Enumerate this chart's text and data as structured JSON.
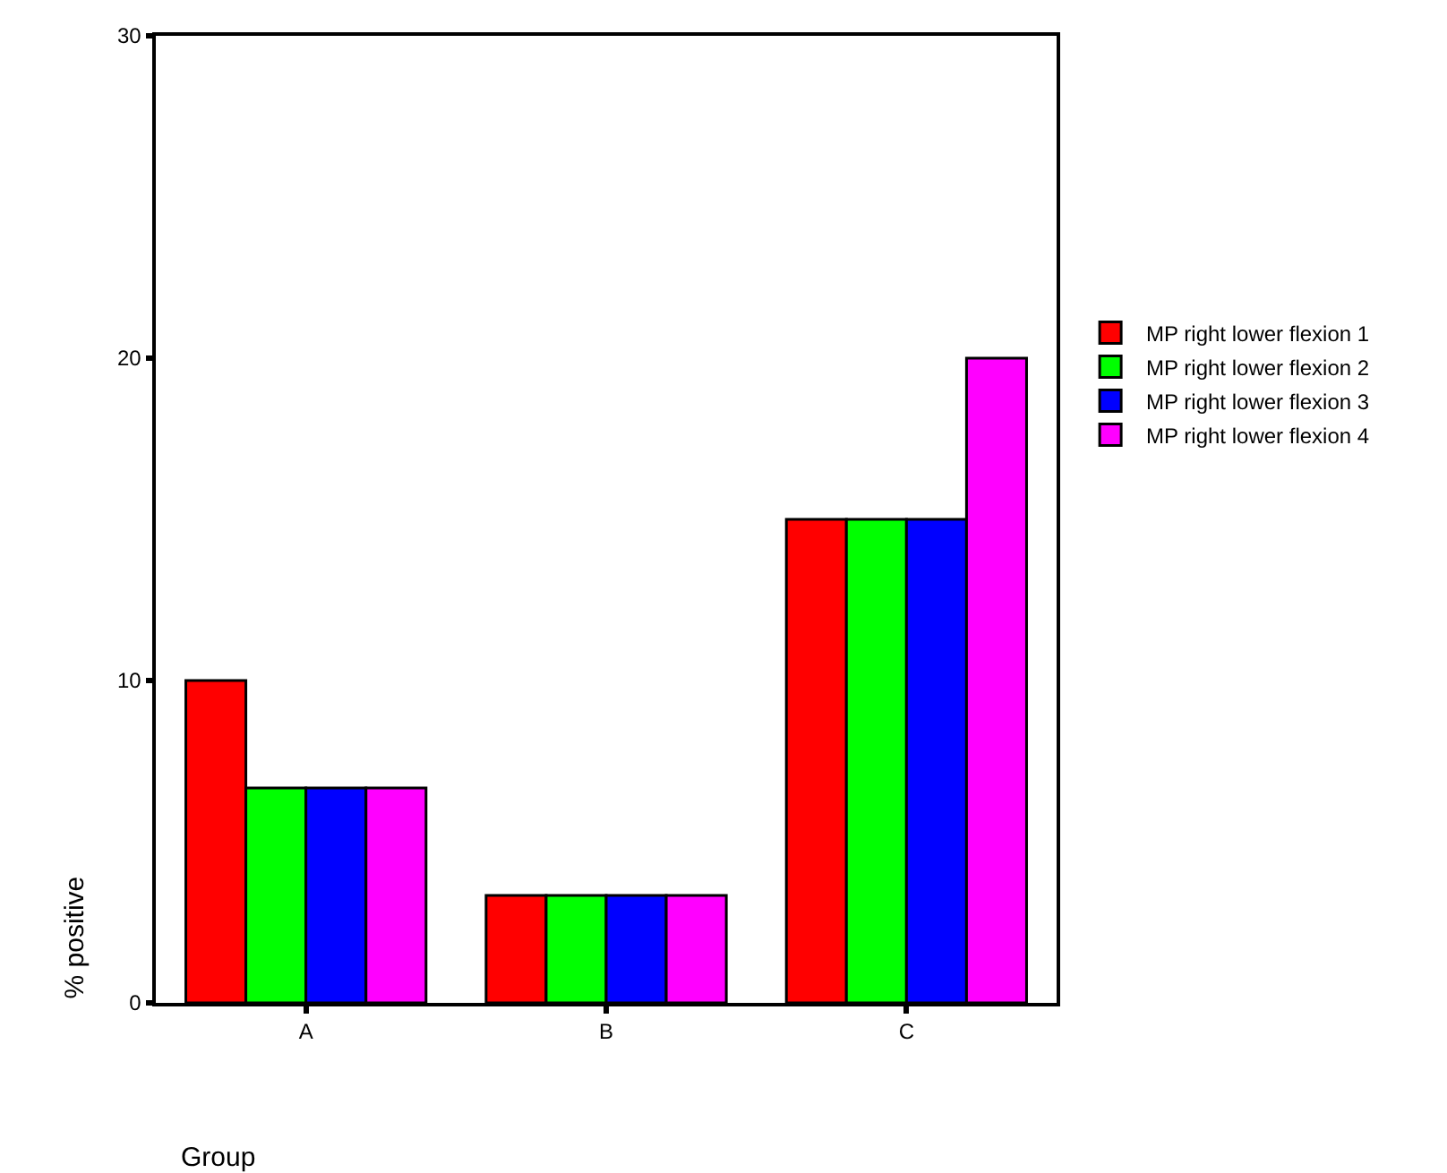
{
  "chart_data": {
    "type": "bar",
    "xlabel": "Group",
    "ylabel": "% positive",
    "categories": [
      "A",
      "B",
      "C"
    ],
    "series": [
      {
        "name": "MP right lower flexion 1",
        "color": "#ff0000",
        "values": [
          10,
          3.33,
          15
        ]
      },
      {
        "name": "MP right lower flexion 2",
        "color": "#00ff00",
        "values": [
          6.67,
          3.33,
          15
        ]
      },
      {
        "name": "MP right lower flexion 3",
        "color": "#0000ff",
        "values": [
          6.67,
          3.33,
          15
        ]
      },
      {
        "name": "MP right lower flexion 4",
        "color": "#ff00ff",
        "values": [
          6.67,
          3.33,
          20
        ]
      }
    ],
    "ylim": [
      0,
      30
    ],
    "yticks": [
      0,
      10,
      20,
      30
    ],
    "grid": false,
    "legend": "right"
  }
}
